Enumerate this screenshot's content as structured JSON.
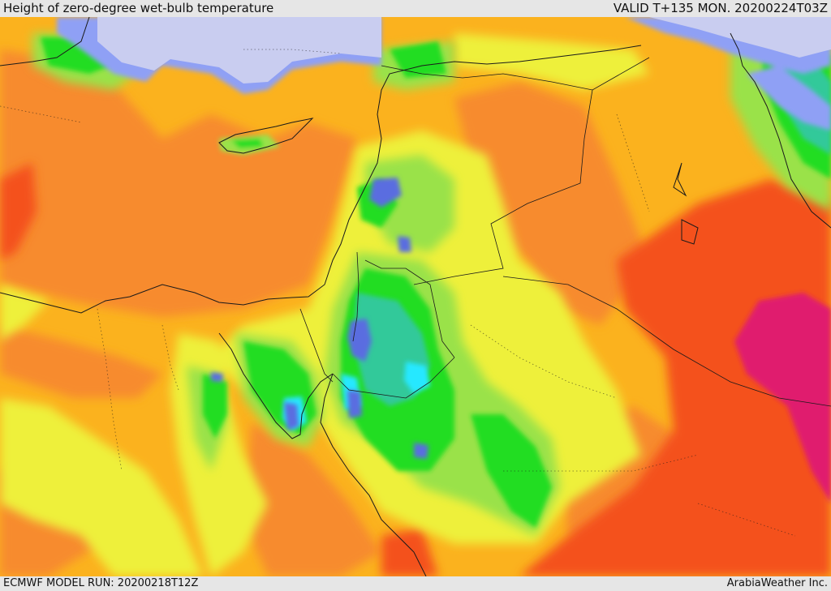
{
  "header": {
    "title": "Height of zero-degree wet-bulb temperature",
    "valid": "VALID T+135 MON. 20200224T03Z"
  },
  "footer": {
    "model_run": "ECMWF MODEL RUN: 20200218T12Z",
    "credit": "ArabiaWeather Inc."
  },
  "map": {
    "colors": {
      "lowest": "#c9cdf0",
      "very_low": "#8fa0f5",
      "low": "#5a6de0",
      "cyan": "#28e8ff",
      "teal": "#33c99a",
      "green": "#22dd22",
      "light_green": "#9ae24a",
      "yellow": "#eef03a",
      "amber": "#fbb21e",
      "orange": "#f78b2e",
      "red_orange": "#f4511c",
      "magenta": "#e01a6e",
      "border": "#1a1a1a"
    }
  }
}
